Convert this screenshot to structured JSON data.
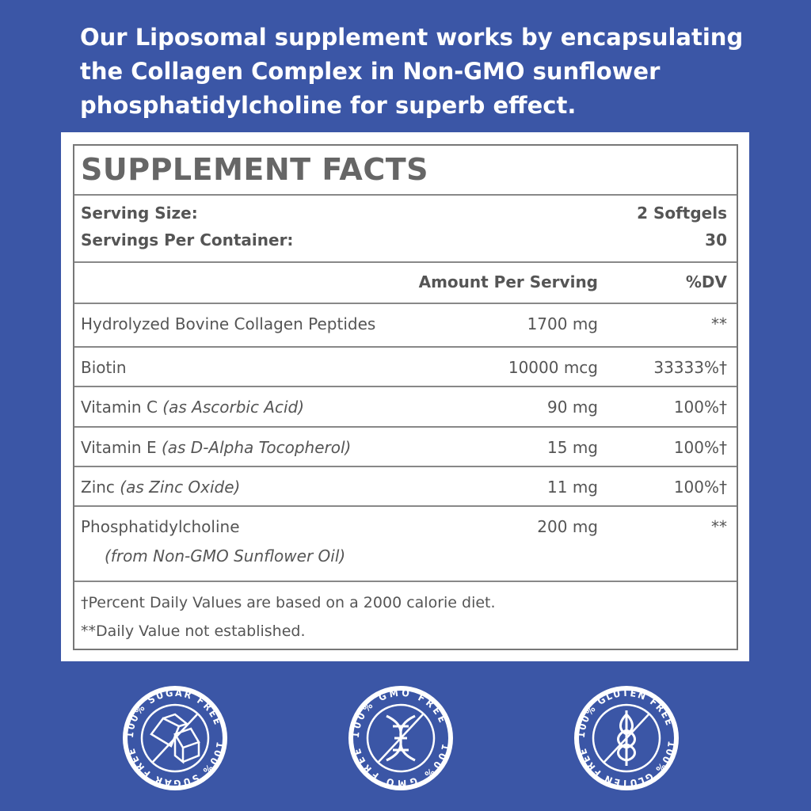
{
  "headline": "Our Liposomal supplement works by encapsulating the Collagen Complex in Non-GMO sunflower phosphatidylcholine for superb effect.",
  "facts": {
    "title": "SUPPLEMENT FACTS",
    "serving_size_label": "Serving Size:",
    "serving_size_value": "2 Softgels",
    "servings_label": "Servings Per Container:",
    "servings_value": "30",
    "col_amount": "Amount Per Serving",
    "col_dv": "%DV",
    "rows": [
      {
        "name": "Hydrolyzed Bovine Collagen Peptides",
        "note": "",
        "amount": "1700 mg",
        "dv": "**"
      },
      {
        "name": "Biotin",
        "note": "",
        "amount": "10000 mcg",
        "dv": "33333%†"
      },
      {
        "name": "Vitamin C",
        "note": "(as Ascorbic Acid)",
        "amount": "90 mg",
        "dv": "100%†"
      },
      {
        "name": "Vitamin E",
        "note": "(as D-Alpha Tocopherol)",
        "amount": "15 mg",
        "dv": "100%†"
      },
      {
        "name": "Zinc",
        "note": "(as Zinc Oxide)",
        "amount": "11 mg",
        "dv": "100%†"
      },
      {
        "name": "Phosphatidylcholine",
        "note": "(from Non-GMO Sunflower Oil)",
        "amount": "200 mg",
        "dv": "**"
      }
    ],
    "footnote1": "†Percent Daily Values are based on a 2000 calorie diet.",
    "footnote2": "**Daily Value not established."
  },
  "badges": [
    {
      "text": "100% SUGAR FREE",
      "icon": "sugar-cubes-icon"
    },
    {
      "text": "100% GMO FREE",
      "icon": "dna-icon"
    },
    {
      "text": "100% GLUTEN FREE",
      "icon": "wheat-icon"
    }
  ],
  "colors": {
    "background": "#3b56a6",
    "text": "#666666"
  }
}
